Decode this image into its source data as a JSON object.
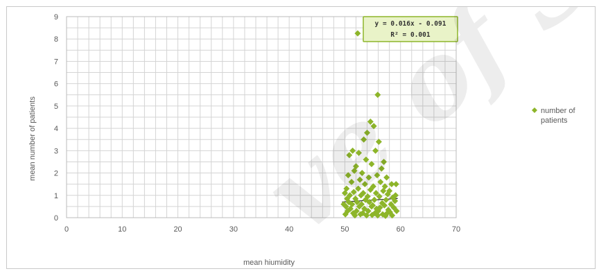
{
  "chart_data": {
    "type": "scatter",
    "title": "",
    "xlabel": "mean hiumidity",
    "ylabel": "mean number of patients",
    "xlim": [
      0,
      70
    ],
    "ylim": [
      0,
      9
    ],
    "x_ticks": [
      "0",
      "10",
      "20",
      "30",
      "40",
      "50",
      "60",
      "70"
    ],
    "y_ticks": [
      "0",
      "1",
      "2",
      "3",
      "4",
      "5",
      "6",
      "7",
      "8",
      "9"
    ],
    "grid": true,
    "legend_position": "right",
    "marker_color": "#8db52a",
    "trendline_color": "#2e2e2e",
    "series": [
      {
        "name": "number of patients",
        "points": [
          [
            52.3,
            8.25
          ],
          [
            55.9,
            5.5
          ],
          [
            54.6,
            4.3
          ],
          [
            55.2,
            4.1
          ],
          [
            54.0,
            3.8
          ],
          [
            53.4,
            3.5
          ],
          [
            56.1,
            3.4
          ],
          [
            51.4,
            3.0
          ],
          [
            55.5,
            3.0
          ],
          [
            52.5,
            2.9
          ],
          [
            50.8,
            2.8
          ],
          [
            53.8,
            2.6
          ],
          [
            57.0,
            2.5
          ],
          [
            54.8,
            2.4
          ],
          [
            52.0,
            2.3
          ],
          [
            56.6,
            2.2
          ],
          [
            51.7,
            2.1
          ],
          [
            53.1,
            2.0
          ],
          [
            55.8,
            1.9
          ],
          [
            57.5,
            1.8
          ],
          [
            50.6,
            1.9
          ],
          [
            54.3,
            1.8
          ],
          [
            52.7,
            1.7
          ],
          [
            56.4,
            1.6
          ],
          [
            58.4,
            1.5
          ],
          [
            59.2,
            1.5
          ],
          [
            51.2,
            1.6
          ],
          [
            53.6,
            1.5
          ],
          [
            55.1,
            1.4
          ],
          [
            57.2,
            1.4
          ],
          [
            50.3,
            1.3
          ],
          [
            52.4,
            1.3
          ],
          [
            54.6,
            1.25
          ],
          [
            56.9,
            1.2
          ],
          [
            58.0,
            1.2
          ],
          [
            51.6,
            1.15
          ],
          [
            53.3,
            1.1
          ],
          [
            55.6,
            1.1
          ],
          [
            57.7,
            1.05
          ],
          [
            50.9,
            1.0
          ],
          [
            52.9,
            1.0
          ],
          [
            54.1,
            0.95
          ],
          [
            56.2,
            0.95
          ],
          [
            58.6,
            0.9
          ],
          [
            50.4,
            0.85
          ],
          [
            51.9,
            0.85
          ],
          [
            53.7,
            0.8
          ],
          [
            55.3,
            0.8
          ],
          [
            57.4,
            0.8
          ],
          [
            59.0,
            0.75
          ],
          [
            50.7,
            0.7
          ],
          [
            52.2,
            0.7
          ],
          [
            54.4,
            0.7
          ],
          [
            56.7,
            0.65
          ],
          [
            58.3,
            0.6
          ],
          [
            51.3,
            0.6
          ],
          [
            53.0,
            0.6
          ],
          [
            55.0,
            0.55
          ],
          [
            57.1,
            0.55
          ],
          [
            50.2,
            0.5
          ],
          [
            52.6,
            0.5
          ],
          [
            54.8,
            0.5
          ],
          [
            56.3,
            0.45
          ],
          [
            58.8,
            0.45
          ],
          [
            51.0,
            0.4
          ],
          [
            53.5,
            0.4
          ],
          [
            55.7,
            0.4
          ],
          [
            57.8,
            0.35
          ],
          [
            50.5,
            0.3
          ],
          [
            52.1,
            0.3
          ],
          [
            54.2,
            0.3
          ],
          [
            56.0,
            0.3
          ],
          [
            58.1,
            0.25
          ],
          [
            59.3,
            0.3
          ],
          [
            51.5,
            0.2
          ],
          [
            53.2,
            0.2
          ],
          [
            55.4,
            0.2
          ],
          [
            57.6,
            0.2
          ],
          [
            50.1,
            0.15
          ],
          [
            52.8,
            0.15
          ],
          [
            54.9,
            0.12
          ],
          [
            56.8,
            0.15
          ],
          [
            58.5,
            0.1
          ],
          [
            51.8,
            0.1
          ],
          [
            53.9,
            0.1
          ],
          [
            55.9,
            0.1
          ],
          [
            57.3,
            0.08
          ],
          [
            49.8,
            0.6
          ],
          [
            59.1,
            1.0
          ],
          [
            50.0,
            1.1
          ]
        ]
      }
    ],
    "trendline": {
      "slope": 0.016,
      "intercept": -0.091,
      "x_from": 49.5,
      "x_to": 59.5
    },
    "annotation": {
      "equation": "y = 0.016x - 0.091",
      "r2": "R² = 0.001"
    }
  }
}
